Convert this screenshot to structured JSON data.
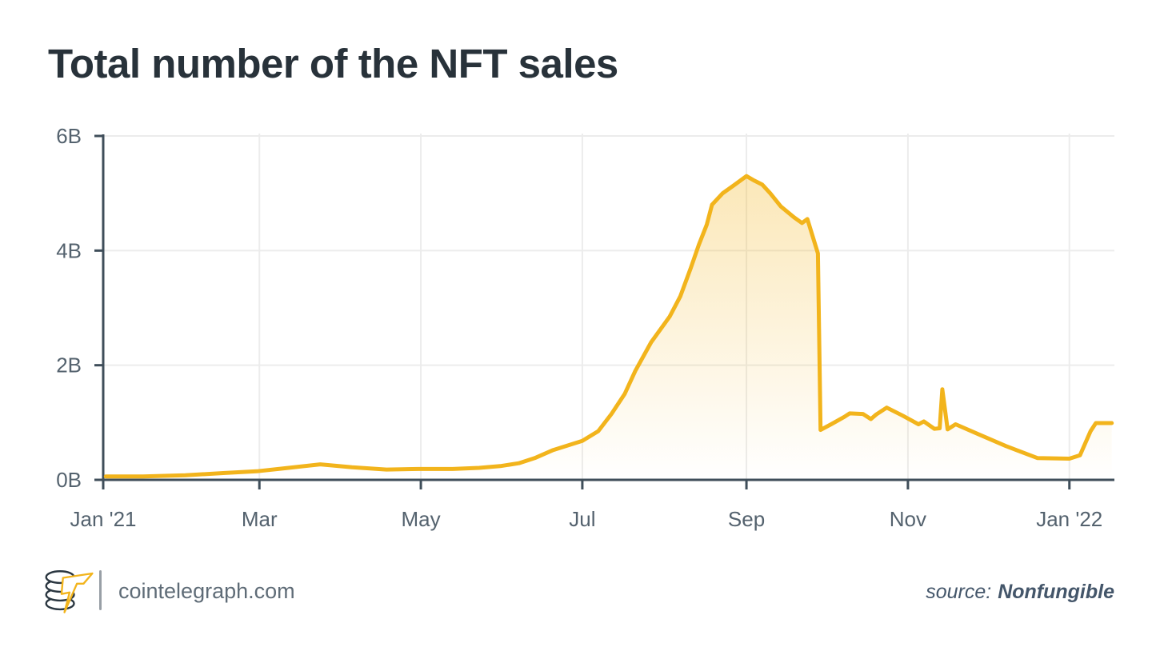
{
  "page": {
    "background": "#ffffff"
  },
  "chart_data": {
    "type": "area",
    "title": "Total number of the NFT sales",
    "xlabel": "",
    "ylabel": "",
    "ylim": [
      0,
      6
    ],
    "grid": true,
    "legend": "none",
    "line_color": "#F2B41C",
    "axis_color": "#3F4E5A",
    "grid_color": "#ECECEC",
    "tick_label_color": "#54626E",
    "y_ticks": [
      {
        "label": "0B",
        "value": 0
      },
      {
        "label": "2B",
        "value": 2
      },
      {
        "label": "4B",
        "value": 4
      },
      {
        "label": "6B",
        "value": 6
      }
    ],
    "x_ticks": [
      {
        "label": "Jan '21",
        "day": 0
      },
      {
        "label": "Mar",
        "day": 59
      },
      {
        "label": "May",
        "day": 120
      },
      {
        "label": "Jul",
        "day": 181
      },
      {
        "label": "Sep",
        "day": 243
      },
      {
        "label": "Nov",
        "day": 304
      },
      {
        "label": "Jan '22",
        "day": 365
      }
    ],
    "x_domain_days": [
      0,
      382
    ],
    "series": [
      {
        "name": "Total number of the NFT sales",
        "units": "billions",
        "points_day_value": [
          [
            1,
            0.06
          ],
          [
            15,
            0.06
          ],
          [
            31,
            0.08
          ],
          [
            46,
            0.12
          ],
          [
            58,
            0.15
          ],
          [
            70,
            0.21
          ],
          [
            82,
            0.27
          ],
          [
            94,
            0.22
          ],
          [
            107,
            0.18
          ],
          [
            119,
            0.19
          ],
          [
            132,
            0.19
          ],
          [
            142,
            0.21
          ],
          [
            150,
            0.24
          ],
          [
            157,
            0.29
          ],
          [
            163,
            0.38
          ],
          [
            170,
            0.52
          ],
          [
            181,
            0.68
          ],
          [
            187,
            0.85
          ],
          [
            192,
            1.15
          ],
          [
            197,
            1.5
          ],
          [
            201,
            1.9
          ],
          [
            207,
            2.4
          ],
          [
            214,
            2.85
          ],
          [
            218,
            3.2
          ],
          [
            222,
            3.7
          ],
          [
            225,
            4.1
          ],
          [
            228,
            4.45
          ],
          [
            230,
            4.8
          ],
          [
            234,
            5.0
          ],
          [
            238,
            5.13
          ],
          [
            243,
            5.3
          ],
          [
            246,
            5.22
          ],
          [
            249,
            5.15
          ],
          [
            252,
            5.0
          ],
          [
            256,
            4.77
          ],
          [
            261,
            4.58
          ],
          [
            264,
            4.48
          ],
          [
            266,
            4.55
          ],
          [
            268,
            4.25
          ],
          [
            270,
            3.95
          ],
          [
            271,
            0.87
          ],
          [
            275,
            0.97
          ],
          [
            280,
            1.1
          ],
          [
            282,
            1.16
          ],
          [
            287,
            1.15
          ],
          [
            290,
            1.06
          ],
          [
            292,
            1.14
          ],
          [
            296,
            1.26
          ],
          [
            302,
            1.12
          ],
          [
            308,
            0.97
          ],
          [
            310,
            1.02
          ],
          [
            314,
            0.89
          ],
          [
            316,
            0.9
          ],
          [
            317,
            1.58
          ],
          [
            319,
            0.88
          ],
          [
            322,
            0.97
          ],
          [
            331,
            0.79
          ],
          [
            341,
            0.59
          ],
          [
            353,
            0.38
          ],
          [
            365,
            0.37
          ],
          [
            369,
            0.43
          ],
          [
            373,
            0.85
          ],
          [
            375,
            0.99
          ],
          [
            381,
            0.99
          ]
        ]
      }
    ]
  },
  "footer": {
    "site": "cointelegraph.com",
    "source_label": "source:",
    "source_value": "Nonfungible",
    "logo_color_dark": "#2A3640",
    "logo_color_yellow": "#F2B41C"
  }
}
